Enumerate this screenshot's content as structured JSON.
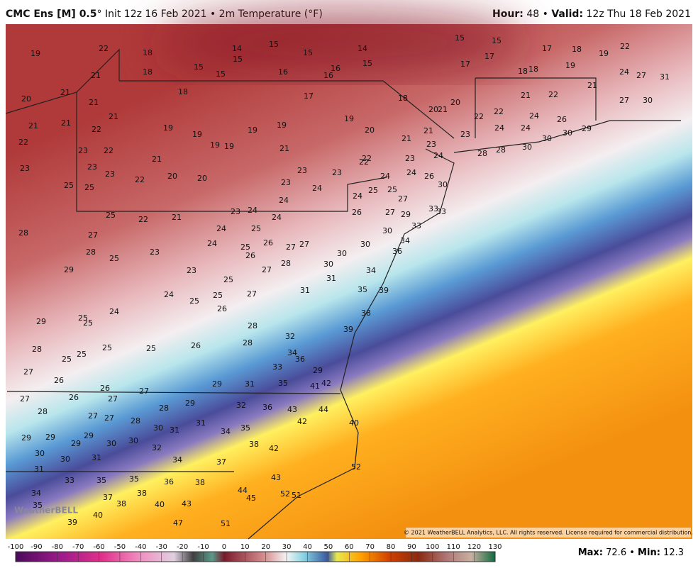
{
  "header": {
    "model": "CMC Ens [M] 0.5",
    "subtitle": "° Init 12z 16 Feb 2021 • 2m Temperature (°F)",
    "hour_label": "Hour:",
    "hour": 48,
    "separator": "•",
    "valid_label": "Valid:",
    "valid": "12z Thu 18 Feb 2021"
  },
  "map": {
    "temperature_labels": [
      19,
      22,
      18,
      18,
      21,
      14,
      15,
      15,
      15,
      15,
      15,
      16,
      16,
      16,
      14,
      15,
      15,
      15,
      17,
      17,
      17,
      18,
      19,
      22,
      24,
      27,
      31,
      18,
      18,
      19,
      21,
      20,
      21,
      21,
      18,
      17,
      18,
      20,
      20,
      21,
      21,
      21,
      21,
      22,
      19,
      19,
      19,
      19,
      19,
      20,
      21,
      21,
      22,
      22,
      21,
      22,
      24,
      26,
      24,
      24,
      23,
      27,
      30,
      29,
      30,
      30,
      30,
      28,
      28,
      22,
      23,
      22,
      19,
      19,
      21,
      23,
      23,
      22,
      22,
      24,
      24,
      26,
      24,
      30,
      23,
      23,
      23,
      21,
      22,
      20,
      20,
      23,
      23,
      23,
      24,
      25,
      25,
      24,
      24,
      25,
      25,
      27,
      33,
      33,
      25,
      22,
      21,
      23,
      24,
      24,
      26,
      27,
      29,
      28,
      27,
      23,
      24,
      25,
      24,
      25,
      26,
      26,
      27,
      27,
      30,
      33,
      34,
      30,
      30,
      28,
      25,
      28,
      30,
      27,
      31,
      36,
      34,
      29,
      23,
      25,
      31,
      35,
      39,
      24,
      25,
      27,
      25,
      24,
      26,
      38,
      29,
      25,
      25,
      28,
      39,
      32,
      28,
      25,
      25,
      25,
      26,
      28,
      25,
      34,
      36,
      33,
      29,
      27,
      26,
      26,
      27,
      29,
      31,
      35,
      41,
      42,
      27,
      26,
      27,
      28,
      29,
      32,
      36,
      28,
      27,
      27,
      28,
      30,
      31,
      31,
      34,
      35,
      43,
      44,
      42,
      40,
      29,
      29,
      29,
      29,
      30,
      30,
      32,
      38,
      42,
      30,
      30,
      31,
      34,
      37,
      31,
      52,
      33,
      35,
      35,
      36,
      38,
      43,
      34,
      37,
      38,
      44,
      52,
      51,
      35,
      38,
      40,
      43,
      45,
      40,
      39,
      47,
      51
    ],
    "logo": "WeatherBELL",
    "copyright": "© 2021 WeatherBELL Analytics, LLC. All rights reserved. License required for commercial distribution."
  },
  "colorbar": {
    "range": [
      -100,
      130
    ],
    "ticks": [
      -100,
      -90,
      -80,
      -70,
      -60,
      -50,
      -40,
      -30,
      -20,
      -10,
      0,
      10,
      20,
      30,
      40,
      50,
      60,
      70,
      80,
      90,
      100,
      110,
      120,
      130
    ]
  },
  "footer": {
    "max_label": "Max:",
    "max": 72.6,
    "separator": "•",
    "min_label": "Min:",
    "min": 12.3
  }
}
